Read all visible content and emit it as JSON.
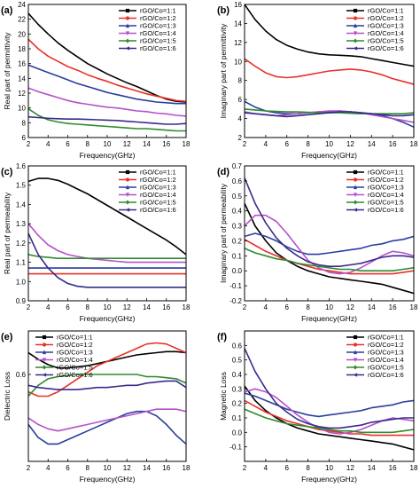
{
  "colors": {
    "rGO/Co=1:1": "#000000",
    "rGO/Co=1:2": "#e8312a",
    "rGO/Co=1:3": "#2a3f9e",
    "rGO/Co=1:4": "#b452c9",
    "rGO/Co=1:5": "#2e8b2e",
    "rGO/Co=1:6": "#3a2a8c"
  },
  "chart_data": [
    {
      "panel": "(a)",
      "type": "line",
      "xlabel": "Frequency(GHz)",
      "ylabel": "Real part of permittivity",
      "xlim": [
        2,
        18
      ],
      "ylim": [
        6,
        24
      ],
      "xticks": [
        2,
        4,
        6,
        8,
        10,
        12,
        14,
        16,
        18
      ],
      "yticks": [
        6,
        8,
        10,
        12,
        14,
        16,
        18,
        20,
        22,
        24
      ],
      "legend_position": "top-right",
      "x": [
        2,
        3,
        4,
        5,
        6,
        7,
        8,
        9,
        10,
        11,
        12,
        13,
        14,
        15,
        16,
        17,
        18
      ],
      "series": [
        {
          "name": "rGO/Co=1:1",
          "values": [
            22.8,
            21.3,
            20.0,
            18.8,
            17.8,
            16.9,
            16.0,
            15.3,
            14.6,
            14.0,
            13.4,
            12.9,
            12.3,
            11.7,
            11.2,
            10.9,
            10.8
          ]
        },
        {
          "name": "rGO/Co=1:2",
          "values": [
            19.3,
            18.0,
            17.0,
            16.3,
            15.6,
            15.1,
            14.5,
            14.0,
            13.6,
            13.1,
            12.7,
            12.3,
            11.9,
            11.6,
            11.3,
            11.0,
            10.9
          ]
        },
        {
          "name": "rGO/Co=1:3",
          "values": [
            15.8,
            15.3,
            14.8,
            14.3,
            13.8,
            13.3,
            12.9,
            12.5,
            12.1,
            11.8,
            11.5,
            11.2,
            11.0,
            10.8,
            10.7,
            10.6,
            10.6
          ]
        },
        {
          "name": "rGO/Co=1:4",
          "values": [
            12.7,
            12.2,
            11.8,
            11.4,
            11.0,
            10.7,
            10.5,
            10.3,
            10.1,
            10.0,
            9.8,
            9.6,
            9.5,
            9.3,
            9.2,
            9.0,
            8.9
          ]
        },
        {
          "name": "rGO/Co=1:5",
          "values": [
            9.9,
            9.0,
            8.4,
            8.1,
            7.9,
            7.8,
            7.7,
            7.6,
            7.5,
            7.4,
            7.3,
            7.2,
            7.2,
            7.1,
            7.0,
            6.9,
            6.9
          ]
        },
        {
          "name": "rGO/Co=1:6",
          "values": [
            8.8,
            8.7,
            8.6,
            8.55,
            8.5,
            8.5,
            8.45,
            8.4,
            8.35,
            8.3,
            8.2,
            8.1,
            8.0,
            7.9,
            7.8,
            7.8,
            7.9
          ]
        }
      ]
    },
    {
      "panel": "(b)",
      "type": "line",
      "xlabel": "Frequency(GHz)",
      "ylabel": "Imaginary part of permittivity",
      "xlim": [
        2,
        18
      ],
      "ylim": [
        2,
        16
      ],
      "xticks": [
        2,
        4,
        6,
        8,
        10,
        12,
        14,
        16,
        18
      ],
      "yticks": [
        2,
        4,
        6,
        8,
        10,
        12,
        14,
        16
      ],
      "legend_position": "top-right",
      "x": [
        2,
        3,
        4,
        5,
        6,
        7,
        8,
        9,
        10,
        11,
        12,
        13,
        14,
        15,
        16,
        17,
        18
      ],
      "series": [
        {
          "name": "rGO/Co=1:1",
          "values": [
            16.0,
            14.4,
            13.2,
            12.3,
            11.7,
            11.3,
            11.0,
            10.8,
            10.7,
            10.65,
            10.6,
            10.5,
            10.3,
            10.1,
            9.9,
            9.7,
            9.5
          ]
        },
        {
          "name": "rGO/Co=1:2",
          "values": [
            10.3,
            9.5,
            8.8,
            8.4,
            8.3,
            8.4,
            8.6,
            8.8,
            9.0,
            9.1,
            9.2,
            9.1,
            8.9,
            8.6,
            8.2,
            7.9,
            7.6
          ]
        },
        {
          "name": "rGO/Co=1:3",
          "values": [
            5.8,
            5.2,
            4.8,
            4.6,
            4.5,
            4.5,
            4.6,
            4.7,
            4.7,
            4.8,
            4.7,
            4.6,
            4.5,
            4.3,
            4.0,
            3.6,
            3.1
          ]
        },
        {
          "name": "rGO/Co=1:4",
          "values": [
            4.7,
            4.5,
            4.4,
            4.3,
            4.4,
            4.5,
            4.6,
            4.7,
            4.8,
            4.8,
            4.7,
            4.6,
            4.4,
            4.2,
            4.0,
            3.8,
            3.6
          ]
        },
        {
          "name": "rGO/Co=1:5",
          "values": [
            5.0,
            4.9,
            4.8,
            4.75,
            4.7,
            4.7,
            4.65,
            4.6,
            4.6,
            4.6,
            4.55,
            4.5,
            4.5,
            4.5,
            4.5,
            4.5,
            4.6
          ]
        },
        {
          "name": "rGO/Co=1:6",
          "values": [
            4.6,
            4.5,
            4.4,
            4.3,
            4.2,
            4.3,
            4.4,
            4.5,
            4.6,
            4.7,
            4.7,
            4.6,
            4.5,
            4.4,
            4.3,
            4.3,
            4.4
          ]
        }
      ]
    },
    {
      "panel": "(c)",
      "type": "line",
      "xlabel": "Frequency(GHz)",
      "ylabel": "Real part of permeability",
      "xlim": [
        2,
        18
      ],
      "ylim": [
        0.9,
        1.6
      ],
      "xticks": [
        2,
        4,
        6,
        8,
        10,
        12,
        14,
        16,
        18
      ],
      "yticks": [
        0.9,
        1.0,
        1.1,
        1.2,
        1.3,
        1.4,
        1.5,
        1.6
      ],
      "legend_position": "top-right",
      "x": [
        2,
        3,
        4,
        5,
        6,
        7,
        8,
        9,
        10,
        11,
        12,
        13,
        14,
        15,
        16,
        17,
        18
      ],
      "series": [
        {
          "name": "rGO/Co=1:1",
          "values": [
            1.52,
            1.535,
            1.535,
            1.525,
            1.505,
            1.48,
            1.455,
            1.425,
            1.395,
            1.365,
            1.335,
            1.305,
            1.275,
            1.245,
            1.215,
            1.18,
            1.14
          ]
        },
        {
          "name": "rGO/Co=1:2",
          "values": [
            1.04,
            1.04,
            1.04,
            1.04,
            1.04,
            1.04,
            1.04,
            1.04,
            1.04,
            1.04,
            1.04,
            1.04,
            1.04,
            1.04,
            1.04,
            1.04,
            1.04
          ]
        },
        {
          "name": "rGO/Co=1:3",
          "values": [
            1.07,
            1.07,
            1.07,
            1.07,
            1.07,
            1.07,
            1.07,
            1.07,
            1.07,
            1.07,
            1.07,
            1.07,
            1.07,
            1.07,
            1.07,
            1.07,
            1.07
          ]
        },
        {
          "name": "rGO/Co=1:4",
          "values": [
            1.3,
            1.24,
            1.19,
            1.16,
            1.14,
            1.13,
            1.12,
            1.115,
            1.11,
            1.105,
            1.1,
            1.1,
            1.1,
            1.1,
            1.1,
            1.1,
            1.1
          ]
        },
        {
          "name": "rGO/Co=1:5",
          "values": [
            1.14,
            1.13,
            1.125,
            1.12,
            1.12,
            1.12,
            1.12,
            1.12,
            1.12,
            1.12,
            1.12,
            1.12,
            1.12,
            1.12,
            1.12,
            1.12,
            1.12
          ]
        },
        {
          "name": "rGO/Co=1:6",
          "values": [
            1.25,
            1.14,
            1.07,
            1.02,
            0.99,
            0.975,
            0.97,
            0.97,
            0.97,
            0.97,
            0.97,
            0.97,
            0.97,
            0.97,
            0.97,
            0.97,
            0.97
          ]
        }
      ]
    },
    {
      "panel": "(d)",
      "type": "line",
      "xlabel": "Frequency(GHz)",
      "ylabel": "Imaginary part of permeability",
      "xlim": [
        2,
        18
      ],
      "ylim": [
        -0.2,
        0.7
      ],
      "xticks": [
        2,
        4,
        6,
        8,
        10,
        12,
        14,
        16,
        18
      ],
      "yticks": [
        -0.2,
        -0.1,
        0.0,
        0.1,
        0.2,
        0.3,
        0.4,
        0.5,
        0.6,
        0.7
      ],
      "legend_position": "top-right",
      "x": [
        2,
        3,
        4,
        5,
        6,
        7,
        8,
        9,
        10,
        11,
        12,
        13,
        14,
        15,
        16,
        17,
        18
      ],
      "series": [
        {
          "name": "rGO/Co=1:1",
          "values": [
            0.45,
            0.3,
            0.2,
            0.12,
            0.07,
            0.03,
            0.0,
            -0.02,
            -0.04,
            -0.05,
            -0.06,
            -0.07,
            -0.08,
            -0.09,
            -0.11,
            -0.13,
            -0.15
          ]
        },
        {
          "name": "rGO/Co=1:2",
          "values": [
            0.21,
            0.17,
            0.13,
            0.1,
            0.07,
            0.05,
            0.03,
            0.01,
            0.0,
            -0.01,
            -0.02,
            -0.02,
            -0.02,
            -0.02,
            -0.02,
            -0.01,
            0.0
          ]
        },
        {
          "name": "rGO/Co=1:3",
          "values": [
            0.23,
            0.25,
            0.23,
            0.2,
            0.16,
            0.13,
            0.11,
            0.11,
            0.12,
            0.13,
            0.14,
            0.15,
            0.17,
            0.18,
            0.2,
            0.21,
            0.23
          ]
        },
        {
          "name": "rGO/Co=1:4",
          "values": [
            0.3,
            0.37,
            0.37,
            0.33,
            0.25,
            0.16,
            0.07,
            0.02,
            -0.01,
            -0.02,
            -0.01,
            0.02,
            0.06,
            0.1,
            0.13,
            0.12,
            0.1
          ]
        },
        {
          "name": "rGO/Co=1:5",
          "values": [
            0.15,
            0.12,
            0.1,
            0.08,
            0.07,
            0.05,
            0.04,
            0.03,
            0.02,
            0.01,
            0.01,
            0.0,
            0.0,
            0.0,
            0.0,
            0.01,
            0.02
          ]
        },
        {
          "name": "rGO/Co=1:6",
          "values": [
            0.62,
            0.45,
            0.32,
            0.22,
            0.15,
            0.1,
            0.06,
            0.04,
            0.03,
            0.03,
            0.04,
            0.05,
            0.07,
            0.09,
            0.1,
            0.1,
            0.09
          ]
        }
      ]
    },
    {
      "panel": "(e)",
      "type": "line",
      "xlabel": "Frequency(GHz)",
      "ylabel": "Dielectric Loss",
      "xlim": [
        2,
        18
      ],
      "ylim": [
        0.2,
        0.8
      ],
      "xticks": [
        2,
        4,
        6,
        8,
        10,
        12,
        14,
        16,
        18
      ],
      "ytick_labels_shown": [
        "0.6"
      ],
      "legend_position": "top-left",
      "x": [
        2,
        3,
        4,
        5,
        6,
        7,
        8,
        9,
        10,
        11,
        12,
        13,
        14,
        15,
        16,
        17,
        18
      ],
      "series": [
        {
          "name": "rGO/Co=1:1",
          "values": [
            0.7,
            0.67,
            0.645,
            0.63,
            0.63,
            0.635,
            0.64,
            0.65,
            0.66,
            0.67,
            0.68,
            0.69,
            0.695,
            0.7,
            0.705,
            0.705,
            0.7
          ]
        },
        {
          "name": "rGO/Co=1:2",
          "values": [
            0.52,
            0.5,
            0.5,
            0.52,
            0.55,
            0.58,
            0.61,
            0.64,
            0.66,
            0.68,
            0.7,
            0.72,
            0.74,
            0.745,
            0.74,
            0.72,
            0.7
          ]
        },
        {
          "name": "rGO/Co=1:3",
          "values": [
            0.37,
            0.31,
            0.28,
            0.28,
            0.3,
            0.32,
            0.34,
            0.36,
            0.38,
            0.4,
            0.42,
            0.43,
            0.43,
            0.41,
            0.37,
            0.32,
            0.28
          ]
        },
        {
          "name": "rGO/Co=1:4",
          "values": [
            0.4,
            0.37,
            0.35,
            0.34,
            0.35,
            0.36,
            0.37,
            0.38,
            0.39,
            0.4,
            0.41,
            0.42,
            0.43,
            0.44,
            0.44,
            0.44,
            0.43
          ]
        },
        {
          "name": "rGO/Co=1:5",
          "values": [
            0.5,
            0.55,
            0.58,
            0.59,
            0.595,
            0.6,
            0.6,
            0.6,
            0.6,
            0.6,
            0.6,
            0.6,
            0.59,
            0.59,
            0.585,
            0.58,
            0.56
          ]
        },
        {
          "name": "rGO/Co=1:6",
          "values": [
            0.55,
            0.54,
            0.535,
            0.53,
            0.53,
            0.53,
            0.535,
            0.54,
            0.54,
            0.545,
            0.55,
            0.55,
            0.56,
            0.565,
            0.57,
            0.57,
            0.54
          ]
        }
      ]
    },
    {
      "panel": "(f)",
      "type": "line",
      "xlabel": "Frequency(GHz)",
      "ylabel": "Magnetic Loss",
      "xlim": [
        2,
        18
      ],
      "ylim": [
        -0.2,
        0.7
      ],
      "xticks": [
        2,
        4,
        6,
        8,
        10,
        12,
        14,
        16,
        18
      ],
      "yticks": [
        -0.1,
        0.0,
        0.1,
        0.2,
        0.3,
        0.4,
        0.5,
        0.6
      ],
      "legend_position": "top-right",
      "x": [
        2,
        3,
        4,
        5,
        6,
        7,
        8,
        9,
        10,
        11,
        12,
        13,
        14,
        15,
        16,
        17,
        18
      ],
      "series": [
        {
          "name": "rGO/Co=1:1",
          "values": [
            0.32,
            0.22,
            0.15,
            0.1,
            0.06,
            0.03,
            0.01,
            -0.01,
            -0.02,
            -0.03,
            -0.04,
            -0.05,
            -0.06,
            -0.07,
            -0.08,
            -0.1,
            -0.12
          ]
        },
        {
          "name": "rGO/Co=1:2",
          "values": [
            0.22,
            0.18,
            0.14,
            0.11,
            0.08,
            0.06,
            0.04,
            0.02,
            0.01,
            0.0,
            -0.01,
            -0.01,
            -0.02,
            -0.02,
            -0.02,
            -0.02,
            -0.02
          ]
        },
        {
          "name": "rGO/Co=1:3",
          "values": [
            0.27,
            0.25,
            0.22,
            0.19,
            0.16,
            0.14,
            0.12,
            0.11,
            0.12,
            0.13,
            0.14,
            0.15,
            0.17,
            0.18,
            0.19,
            0.21,
            0.22
          ]
        },
        {
          "name": "rGO/Co=1:4",
          "values": [
            0.28,
            0.3,
            0.28,
            0.24,
            0.18,
            0.12,
            0.07,
            0.03,
            0.0,
            -0.01,
            0.0,
            0.02,
            0.05,
            0.08,
            0.1,
            0.09,
            0.08
          ]
        },
        {
          "name": "rGO/Co=1:5",
          "values": [
            0.16,
            0.13,
            0.1,
            0.08,
            0.06,
            0.05,
            0.04,
            0.03,
            0.02,
            0.01,
            0.01,
            0.0,
            0.0,
            0.0,
            0.0,
            0.01,
            0.02
          ]
        },
        {
          "name": "rGO/Co=1:6",
          "values": [
            0.58,
            0.42,
            0.3,
            0.2,
            0.14,
            0.09,
            0.06,
            0.04,
            0.03,
            0.03,
            0.04,
            0.05,
            0.07,
            0.08,
            0.09,
            0.1,
            0.1
          ]
        }
      ]
    }
  ]
}
